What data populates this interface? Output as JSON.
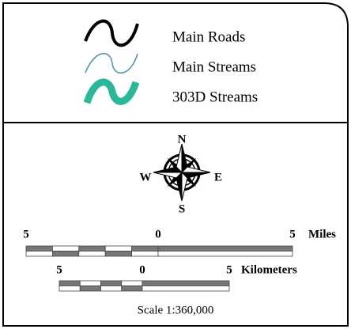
{
  "legend": {
    "items": [
      {
        "label": "Main Roads"
      },
      {
        "label": "Main Streams"
      },
      {
        "label": "303D Streams"
      }
    ]
  },
  "compass": {
    "north": "N",
    "east": "E",
    "south": "S",
    "west": "W"
  },
  "scale_miles": {
    "labels": [
      5,
      0,
      5
    ],
    "unit": "Miles"
  },
  "scale_km": {
    "labels": [
      5,
      0,
      5
    ],
    "unit": "Kilometers"
  },
  "scale_text": "Scale 1:360,000"
}
